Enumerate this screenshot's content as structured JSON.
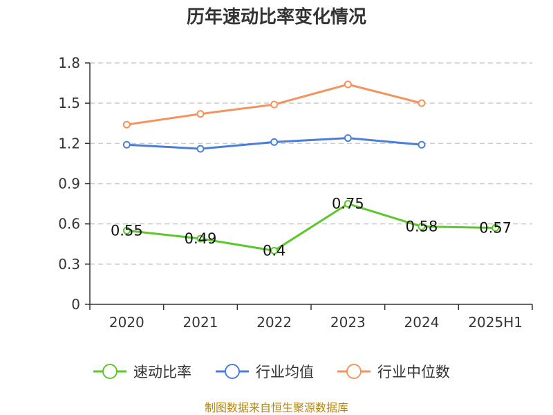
{
  "chart_data": {
    "type": "line",
    "title": "历年速动比率变化情况",
    "categories": [
      "2020",
      "2021",
      "2022",
      "2023",
      "2024",
      "2025H1"
    ],
    "ylim": [
      0,
      1.8
    ],
    "yticks": [
      "0",
      "0.3",
      "0.6",
      "0.9",
      "1.2",
      "1.5",
      "1.8"
    ],
    "grid": true,
    "legend_position": "bottom",
    "series": [
      {
        "name": "速动比率",
        "color": "#5cc72a",
        "values": [
          0.55,
          0.49,
          0.4,
          0.75,
          0.58,
          0.57
        ],
        "labels": [
          "0.55",
          "0.49",
          "0.4",
          "0.75",
          "0.58",
          "0.57"
        ]
      },
      {
        "name": "行业均值",
        "color": "#4a7fd9",
        "values": [
          1.19,
          1.16,
          1.21,
          1.24,
          1.19,
          null
        ]
      },
      {
        "name": "行业中位数",
        "color": "#f5925c",
        "values": [
          1.34,
          1.42,
          1.49,
          1.64,
          1.5,
          null
        ]
      }
    ]
  },
  "source_note": "制图数据来自恒生聚源数据库"
}
